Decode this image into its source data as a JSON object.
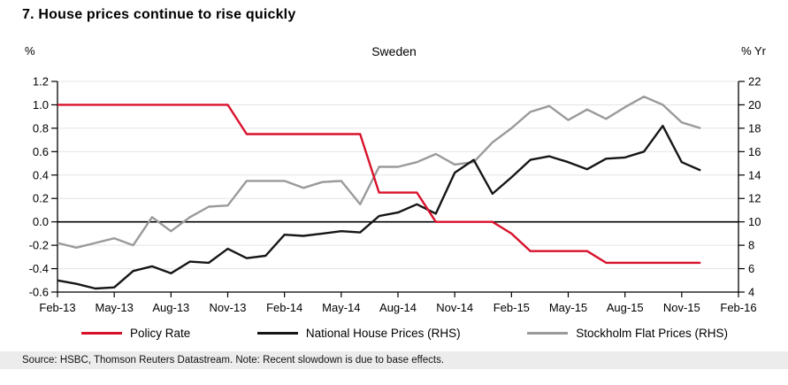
{
  "header": {
    "title": "7. House prices continue to rise quickly"
  },
  "chart_data": {
    "type": "line",
    "title": "Sweden",
    "grid": "horizontal",
    "legend_position": "bottom",
    "x": [
      "Feb-13",
      "Mar-13",
      "Apr-13",
      "May-13",
      "Jun-13",
      "Jul-13",
      "Aug-13",
      "Sep-13",
      "Oct-13",
      "Nov-13",
      "Dec-13",
      "Jan-14",
      "Feb-14",
      "Mar-14",
      "Apr-14",
      "May-14",
      "Jun-14",
      "Jul-14",
      "Aug-14",
      "Sep-14",
      "Oct-14",
      "Nov-14",
      "Dec-14",
      "Jan-15",
      "Feb-15",
      "Mar-15",
      "Apr-15",
      "May-15",
      "Jun-15",
      "Jul-15",
      "Aug-15",
      "Sep-15",
      "Oct-15",
      "Nov-15",
      "Dec-15"
    ],
    "x_tick_labels": [
      "Feb-13",
      "May-13",
      "Aug-13",
      "Nov-13",
      "Feb-14",
      "May-14",
      "Aug-14",
      "Nov-14",
      "Feb-15",
      "May-15",
      "Aug-15",
      "Nov-15",
      "Feb-16"
    ],
    "x_months_total": 36,
    "left_axis": {
      "unit": "%",
      "min": -0.6,
      "max": 1.2,
      "tick_labels": [
        "1.2",
        "1.0",
        "0.8",
        "0.6",
        "0.4",
        "0.2",
        "0.0",
        "-0.2",
        "-0.4",
        "-0.6"
      ],
      "tick_values": [
        1.2,
        1.0,
        0.8,
        0.6,
        0.4,
        0.2,
        0.0,
        -0.2,
        -0.4,
        -0.6
      ]
    },
    "right_axis": {
      "unit": "% Yr",
      "min": 4,
      "max": 22,
      "tick_labels": [
        "22",
        "20",
        "18",
        "16",
        "14",
        "12",
        "10",
        "8",
        "6",
        "4"
      ],
      "tick_values": [
        22,
        20,
        18,
        16,
        14,
        12,
        10,
        8,
        6,
        4
      ]
    },
    "series": [
      {
        "name": "Policy Rate",
        "axis": "left",
        "color": "#d8112b",
        "values": [
          1.0,
          1.0,
          1.0,
          1.0,
          1.0,
          1.0,
          1.0,
          1.0,
          1.0,
          1.0,
          0.75,
          0.75,
          0.75,
          0.75,
          0.75,
          0.75,
          0.75,
          0.25,
          0.25,
          0.25,
          0.0,
          0.0,
          0.0,
          0.0,
          -0.1,
          -0.25,
          -0.25,
          -0.25,
          -0.25,
          -0.35,
          -0.35,
          -0.35,
          -0.35,
          -0.35,
          -0.35
        ]
      },
      {
        "name": "National House Prices (RHS)",
        "axis": "right",
        "color": "#161616",
        "values": [
          5.0,
          4.7,
          4.3,
          4.4,
          5.8,
          6.2,
          5.6,
          6.6,
          6.5,
          7.7,
          6.9,
          7.1,
          8.9,
          8.8,
          9.0,
          9.2,
          9.1,
          10.5,
          10.8,
          11.5,
          10.7,
          14.2,
          15.3,
          12.4,
          13.8,
          15.3,
          15.6,
          15.1,
          14.5,
          15.4,
          15.5,
          16.0,
          18.2,
          15.1,
          14.4
        ]
      },
      {
        "name": "Stockholm Flat Prices (RHS)",
        "axis": "right",
        "color": "#9a9a9a",
        "values": [
          8.2,
          7.8,
          8.2,
          8.6,
          8.0,
          10.4,
          9.2,
          10.4,
          11.3,
          11.4,
          13.5,
          13.5,
          13.5,
          12.9,
          13.4,
          13.5,
          11.5,
          14.7,
          14.7,
          15.1,
          15.8,
          14.9,
          15.1,
          16.8,
          18.0,
          19.4,
          19.9,
          18.7,
          19.6,
          18.8,
          19.8,
          20.7,
          20.0,
          18.5,
          18.0
        ]
      }
    ]
  },
  "footer": {
    "source": "Source: HSBC, Thomson Reuters Datastream. Note: Recent slowdown is due to base effects."
  }
}
